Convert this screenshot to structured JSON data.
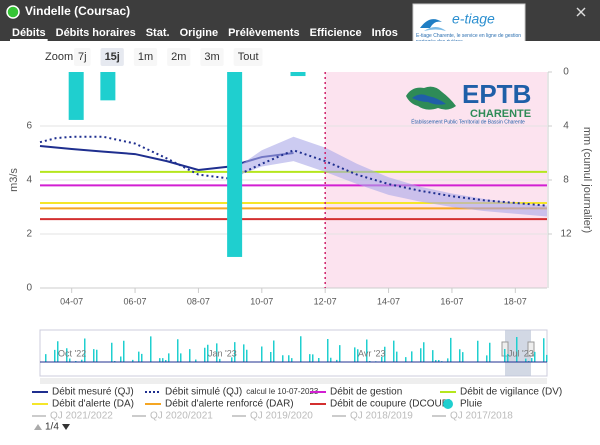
{
  "header": {
    "title": "Vindelle (Coursac)"
  },
  "tabs": [
    "Débits",
    "Débits horaires",
    "Stat.",
    "Origine",
    "Prélèvements",
    "Efficience",
    "Infos"
  ],
  "active_tab": 0,
  "logo_etiage": {
    "name": "e-tiage",
    "tagline": "E-tiage Charente, le service en ligne de gestion partagée des rivières"
  },
  "zoom": {
    "label": "Zoom",
    "buttons": [
      "7j",
      "15j",
      "1m",
      "2m",
      "3m",
      "Tout"
    ],
    "selected": 1
  },
  "chart_data": {
    "type": "line",
    "ylabel": "m3/s",
    "y2label": "mm (cumul journalier)",
    "xlim": [
      3,
      19
    ],
    "xticks": [
      {
        "value": 4,
        "label": "04-07"
      },
      {
        "value": 6,
        "label": "06-07"
      },
      {
        "value": 8,
        "label": "08-07"
      },
      {
        "value": 10,
        "label": "10-07"
      },
      {
        "value": 12,
        "label": "12-07"
      },
      {
        "value": 14,
        "label": "14-07"
      },
      {
        "value": 16,
        "label": "16-07"
      },
      {
        "value": 18,
        "label": "18-07"
      }
    ],
    "ylim": [
      0,
      8
    ],
    "yticks": [
      0,
      2,
      4,
      6
    ],
    "y2lim": [
      0,
      16
    ],
    "y2ticks": [
      0,
      4,
      8,
      12
    ],
    "y2_reversed": true,
    "grid": true,
    "forecast_start": 12,
    "forecast_color": "#fce3ef",
    "series": [
      {
        "name": "Débit mesuré (QJ)",
        "type": "line",
        "color": "#1f2f8f",
        "x": [
          3,
          4,
          5,
          6,
          7,
          8,
          9,
          10,
          11
        ],
        "values": [
          5.26,
          5.15,
          5.05,
          4.96,
          4.7,
          4.37,
          4.5,
          4.85,
          5.0
        ]
      },
      {
        "name": "Débit simulé (QJ)",
        "legend_note": "calcul le 10-07-2023",
        "type": "line",
        "dashed": true,
        "color": "#1f2f8f",
        "x": [
          3,
          3.5,
          4,
          5,
          6,
          7,
          8,
          9,
          10,
          11,
          12,
          13,
          14,
          15,
          16,
          17,
          18,
          19
        ],
        "values": [
          5.4,
          5.55,
          5.6,
          5.6,
          5.35,
          4.8,
          4.2,
          4.05,
          4.6,
          5.1,
          4.7,
          4.2,
          3.85,
          3.6,
          3.4,
          3.25,
          3.15,
          3.05
        ],
        "band": {
          "color": "#aaa8e8",
          "x": [
            9,
            10,
            11,
            12,
            13,
            14,
            15,
            16,
            17,
            18,
            19
          ],
          "low": [
            4.05,
            4.5,
            4.7,
            4.3,
            3.85,
            3.45,
            3.2,
            3.0,
            2.85,
            2.75,
            2.65
          ],
          "high": [
            4.3,
            5.1,
            5.6,
            5.2,
            4.6,
            4.1,
            3.75,
            3.5,
            3.3,
            3.15,
            3.05
          ]
        }
      },
      {
        "name": "Débit de gestion",
        "type": "hline",
        "color": "#d21fd2",
        "value": 3.8
      },
      {
        "name": "Débit de vigilance (DV)",
        "type": "hline",
        "color": "#b5e61d",
        "value": 4.3
      },
      {
        "name": "Débit d'alerte (DA)",
        "type": "hline",
        "color": "#f5e62a",
        "value": 3.15
      },
      {
        "name": "Débit d'alerte renforcé (DAR)",
        "type": "hline",
        "color": "#f5a623",
        "value": 2.95
      },
      {
        "name": "Débit de coupure (DCOUP)",
        "type": "hline",
        "color": "#d32f2f",
        "value": 2.55
      },
      {
        "name": "Pluie",
        "type": "bar",
        "axis": "y2",
        "color": "#1fcfcf",
        "x": [
          4,
          5,
          9,
          11
        ],
        "values": [
          3.55,
          2.1,
          13.7,
          0.3
        ]
      }
    ],
    "hidden_series": [
      "QJ 2021/2022",
      "QJ 2020/2021",
      "QJ 2019/2020",
      "QJ 2018/2019",
      "QJ 2017/2018"
    ],
    "logo": {
      "title": "EPTB",
      "subtitle": "CHARENTE",
      "caption": "Établissement Public Territorial de Bassin Charente"
    }
  },
  "navigator": {
    "labels": [
      "Oct '22",
      "Jan '23",
      "Avr '23",
      "Jul '23"
    ]
  },
  "legend_pager": "1/4"
}
